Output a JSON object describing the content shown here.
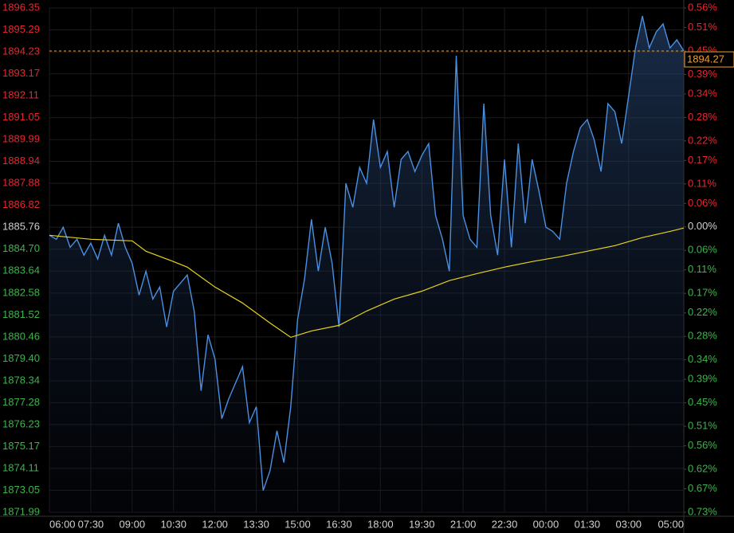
{
  "chart_data": {
    "type": "line",
    "x": [
      0,
      0.25,
      0.5,
      0.75,
      1,
      1.25,
      1.5,
      1.75,
      2,
      2.25,
      2.5,
      2.75,
      3,
      3.25,
      3.5,
      3.75,
      4,
      4.25,
      4.5,
      4.75,
      5,
      5.25,
      5.5,
      5.75,
      6,
      6.25,
      6.5,
      6.75,
      7,
      7.25,
      7.5,
      7.75,
      8,
      8.25,
      8.5,
      8.75,
      9,
      9.25,
      9.5,
      9.75,
      10,
      10.25,
      10.5,
      10.75,
      11,
      11.25,
      11.5,
      11.75,
      12,
      12.25,
      12.5,
      12.75,
      13,
      13.25,
      13.5,
      13.75,
      14,
      14.25,
      14.5,
      14.75,
      15,
      15.25,
      15.5,
      15.75,
      16,
      16.25,
      16.5,
      16.75,
      17,
      17.25,
      17.5,
      17.75,
      18,
      18.25,
      18.5,
      18.75,
      19,
      19.25,
      19.5,
      19.75,
      20,
      20.25,
      20.5,
      20.75,
      21,
      21.25,
      21.5,
      21.75,
      22,
      22.25,
      22.5,
      22.75,
      23
    ],
    "series": [
      {
        "color": "#4a90e2",
        "values": [
          1885.37,
          1885.18,
          1885.76,
          1884.79,
          1885.18,
          1884.41,
          1884.99,
          1884.22,
          1885.37,
          1884.41,
          1885.95,
          1884.79,
          1884.02,
          1882.48,
          1883.64,
          1882.29,
          1882.87,
          1880.94,
          1882.67,
          1883.06,
          1883.45,
          1881.71,
          1877.86,
          1880.56,
          1879.4,
          1876.51,
          1877.47,
          1878.24,
          1879.02,
          1876.32,
          1877.09,
          1873.04,
          1874.01,
          1875.93,
          1874.39,
          1877.09,
          1881.33,
          1883.25,
          1886.14,
          1883.64,
          1885.76,
          1884.02,
          1880.94,
          1887.88,
          1886.72,
          1888.65,
          1887.88,
          1890.96,
          1888.65,
          1889.42,
          1886.72,
          1889.03,
          1889.42,
          1888.45,
          1889.22,
          1889.8,
          1886.33,
          1885.18,
          1883.64,
          1894.04,
          1886.33,
          1885.18,
          1884.79,
          1891.73,
          1886.33,
          1884.41,
          1889.03,
          1884.79,
          1889.8,
          1885.95,
          1889.03,
          1887.49,
          1885.76,
          1885.56,
          1885.18,
          1887.88,
          1889.42,
          1890.57,
          1890.96,
          1889.99,
          1888.45,
          1891.73,
          1891.34,
          1889.8,
          1892.11,
          1894.42,
          1895.96,
          1894.42,
          1895.19,
          1895.58,
          1894.42,
          1894.81,
          1894.27
        ]
      },
      {
        "color": "#e6d21e",
        "x": [
          0,
          1.5,
          3,
          3.5,
          4.5,
          5,
          6,
          7,
          8,
          8.75,
          9.5,
          10.5,
          11.5,
          12.5,
          13.5,
          14.5,
          15.5,
          16.5,
          17.5,
          18.5,
          19.5,
          20.5,
          21.5,
          22.5,
          23
        ],
        "values": [
          1885.37,
          1885.18,
          1885.1,
          1884.6,
          1884.1,
          1883.83,
          1882.87,
          1882.1,
          1881.13,
          1880.44,
          1880.75,
          1881.02,
          1881.71,
          1882.29,
          1882.67,
          1883.18,
          1883.52,
          1883.83,
          1884.1,
          1884.33,
          1884.6,
          1884.87,
          1885.26,
          1885.56,
          1885.72
        ]
      }
    ],
    "last_price": 1894.27,
    "last_price_color": "#f0a030",
    "xlim": [
      0,
      23
    ],
    "xticks": [
      {
        "value": 0,
        "label": "06:00"
      },
      {
        "value": 1.5,
        "label": "07:30"
      },
      {
        "value": 3,
        "label": "09:00"
      },
      {
        "value": 4.5,
        "label": "10:30"
      },
      {
        "value": 6,
        "label": "12:00"
      },
      {
        "value": 7.5,
        "label": "13:30"
      },
      {
        "value": 9,
        "label": "15:00"
      },
      {
        "value": 10.5,
        "label": "16:30"
      },
      {
        "value": 12,
        "label": "18:00"
      },
      {
        "value": 13.5,
        "label": "19:30"
      },
      {
        "value": 15,
        "label": "21:00"
      },
      {
        "value": 16.5,
        "label": "22:30"
      },
      {
        "value": 18,
        "label": "00:00"
      },
      {
        "value": 19.5,
        "label": "01:30"
      },
      {
        "value": 21,
        "label": "03:00"
      },
      {
        "value": 23,
        "label": "05:00"
      }
    ],
    "ylim": [
      1871.99,
      1896.35
    ],
    "yticks": [
      1896.35,
      1895.29,
      1894.23,
      1893.17,
      1892.11,
      1891.05,
      1889.99,
      1888.94,
      1887.88,
      1886.82,
      1885.76,
      {
        "value": 1884.7,
        "label": "1884.70"
      },
      1883.64,
      1882.58,
      1881.52,
      1880.46,
      {
        "value": 1879.4,
        "label": "1879.40"
      },
      1878.34,
      1877.28,
      1876.23,
      1875.17,
      1874.11,
      1873.05,
      1871.99
    ],
    "y2lim": [
      -0.73,
      0.56
    ],
    "y2ticks": [
      {
        "value": 0.56,
        "label": "0.56%"
      },
      {
        "value": 0.51,
        "label": "0.51%"
      },
      {
        "value": 0.45,
        "label": "0.45%"
      },
      {
        "value": 0.39,
        "label": "0.39%"
      },
      {
        "value": 0.34,
        "label": "0.34%"
      },
      {
        "value": 0.28,
        "label": "0.28%"
      },
      {
        "value": 0.22,
        "label": "0.22%"
      },
      {
        "value": 0.17,
        "label": "0.17%"
      },
      {
        "value": 0.11,
        "label": "0.11%"
      },
      {
        "value": 0.06,
        "label": "0.06%"
      },
      {
        "value": 0,
        "label": "0.00%"
      },
      {
        "value": -0.06,
        "label": "0.06%"
      },
      {
        "value": -0.11,
        "label": "0.11%"
      },
      {
        "value": -0.17,
        "label": "0.17%"
      },
      {
        "value": -0.22,
        "label": "0.22%"
      },
      {
        "value": -0.28,
        "label": "0.28%"
      },
      {
        "value": -0.34,
        "label": "0.34%"
      },
      {
        "value": -0.39,
        "label": "0.39%"
      },
      {
        "value": -0.45,
        "label": "0.45%"
      },
      {
        "value": -0.51,
        "label": "0.51%"
      },
      {
        "value": -0.56,
        "label": "0.56%"
      },
      {
        "value": -0.62,
        "label": "0.62%"
      },
      {
        "value": -0.67,
        "label": "0.67%"
      },
      {
        "value": -0.73,
        "label": "0.73%"
      }
    ],
    "grid": true,
    "label_colors": {
      "positive": "#e8262d",
      "negative": "#3cb44b",
      "neutral": "#d0d0d0"
    }
  }
}
